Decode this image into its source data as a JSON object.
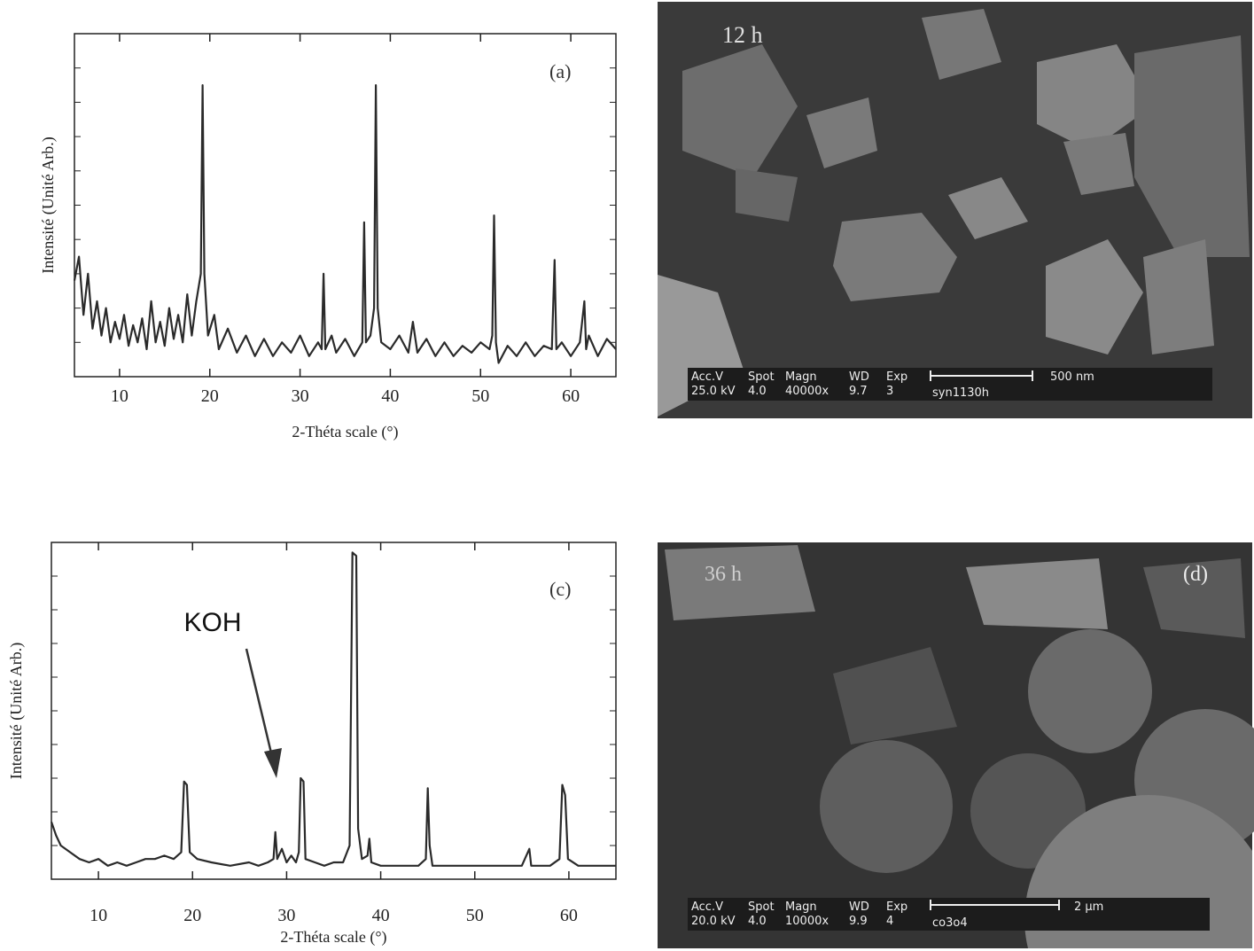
{
  "chart_data": [
    {
      "type": "line",
      "panel_label": "(a)",
      "xlabel": "2-Théta scale (°)",
      "ylabel": "Intensité (Unité Arb.)",
      "color": "#2a2a2a",
      "xlim": [
        5,
        65
      ],
      "xticks": [
        10,
        20,
        30,
        40,
        50,
        60
      ],
      "ylim": [
        0,
        100
      ],
      "x": [
        5,
        5.5,
        6,
        6.5,
        7,
        7.5,
        8,
        8.5,
        9,
        9.5,
        10,
        10.5,
        11,
        11.5,
        12,
        12.5,
        13,
        13.5,
        14,
        14.5,
        15,
        15.5,
        16,
        16.5,
        17,
        17.5,
        18,
        18.5,
        19,
        19.2,
        19.4,
        19.8,
        20.5,
        21,
        22,
        23,
        24,
        25,
        26,
        27,
        28,
        29,
        30,
        31,
        32,
        32.4,
        32.6,
        32.8,
        33.5,
        34,
        35,
        36,
        36.9,
        37.1,
        37.3,
        37.8,
        38.2,
        38.4,
        38.6,
        39,
        40,
        41,
        42,
        42.5,
        43,
        44,
        45,
        46,
        47,
        48,
        49,
        50,
        51,
        51.3,
        51.5,
        51.7,
        52,
        53,
        54,
        55,
        56,
        57,
        57.9,
        58.2,
        58.4,
        59,
        60,
        61,
        61.5,
        61.7,
        62,
        63,
        64,
        65
      ],
      "values": [
        28,
        35,
        18,
        30,
        14,
        22,
        12,
        20,
        10,
        16,
        11,
        18,
        9,
        15,
        10,
        17,
        8,
        22,
        10,
        16,
        9,
        20,
        11,
        18,
        10,
        24,
        12,
        22,
        30,
        85,
        30,
        12,
        18,
        8,
        14,
        7,
        12,
        6,
        11,
        6,
        10,
        7,
        12,
        6,
        10,
        8,
        30,
        8,
        12,
        7,
        11,
        6,
        10,
        45,
        10,
        12,
        20,
        85,
        20,
        10,
        8,
        12,
        7,
        16,
        7,
        11,
        6,
        10,
        6,
        9,
        7,
        10,
        8,
        12,
        47,
        10,
        4,
        9,
        6,
        10,
        6,
        9,
        8,
        34,
        8,
        10,
        6,
        10,
        22,
        8,
        12,
        6,
        11,
        8
      ]
    },
    {
      "type": "line",
      "panel_label": "(c)",
      "xlabel": "2-Théta scale (°)",
      "ylabel": "Intensité (Unité Arb.)",
      "color": "#2a2a2a",
      "annotation": "KOH",
      "xlim": [
        5,
        65
      ],
      "xticks": [
        10,
        20,
        30,
        40,
        50,
        60
      ],
      "ylim": [
        0,
        100
      ],
      "x": [
        5,
        5.5,
        6,
        7,
        8,
        9,
        10,
        11,
        12,
        13,
        14,
        15,
        16,
        17,
        18,
        18.8,
        19.1,
        19.4,
        19.7,
        20.5,
        22,
        24,
        26,
        27,
        28,
        28.6,
        28.8,
        29,
        29.5,
        30,
        30.5,
        31,
        31.3,
        31.5,
        31.8,
        32,
        33,
        34,
        35,
        36,
        36.7,
        37,
        37.4,
        37.6,
        38,
        38.6,
        38.8,
        39,
        40,
        42,
        44,
        44.8,
        45,
        45.2,
        45.5,
        47,
        49,
        51,
        53,
        55,
        55.8,
        56,
        58,
        59,
        59.3,
        59.6,
        59.9,
        61,
        63,
        65
      ],
      "values": [
        17,
        13,
        10,
        8,
        6,
        5,
        6,
        4,
        5,
        4,
        5,
        6,
        6,
        7,
        6,
        8,
        29,
        28,
        8,
        6,
        5,
        4,
        5,
        4,
        5,
        6,
        14,
        6,
        9,
        5,
        7,
        5,
        8,
        30,
        29,
        6,
        5,
        4,
        5,
        5,
        10,
        97,
        96,
        15,
        6,
        7,
        12,
        5,
        4,
        4,
        4,
        6,
        27,
        10,
        4,
        4,
        4,
        4,
        4,
        4,
        9,
        4,
        4,
        6,
        28,
        25,
        6,
        4,
        4,
        4
      ]
    }
  ],
  "images": [
    {
      "label": "12 h",
      "info_header": [
        "Acc.V",
        "Spot",
        "Magn",
        "WD",
        "Exp"
      ],
      "info_values": [
        "25.0 kV",
        "4.0",
        "40000x",
        "9.7",
        "3"
      ],
      "scale": "500 nm",
      "sample": "syn1130h"
    },
    {
      "label": "36 h",
      "panel_label": "(d)",
      "info_header": [
        "Acc.V",
        "Spot",
        "Magn",
        "WD",
        "Exp"
      ],
      "info_values": [
        "20.0 kV",
        "4.0",
        "10000x",
        "9.9",
        "4"
      ],
      "scale": "2 µm",
      "sample": "co3o4"
    }
  ]
}
